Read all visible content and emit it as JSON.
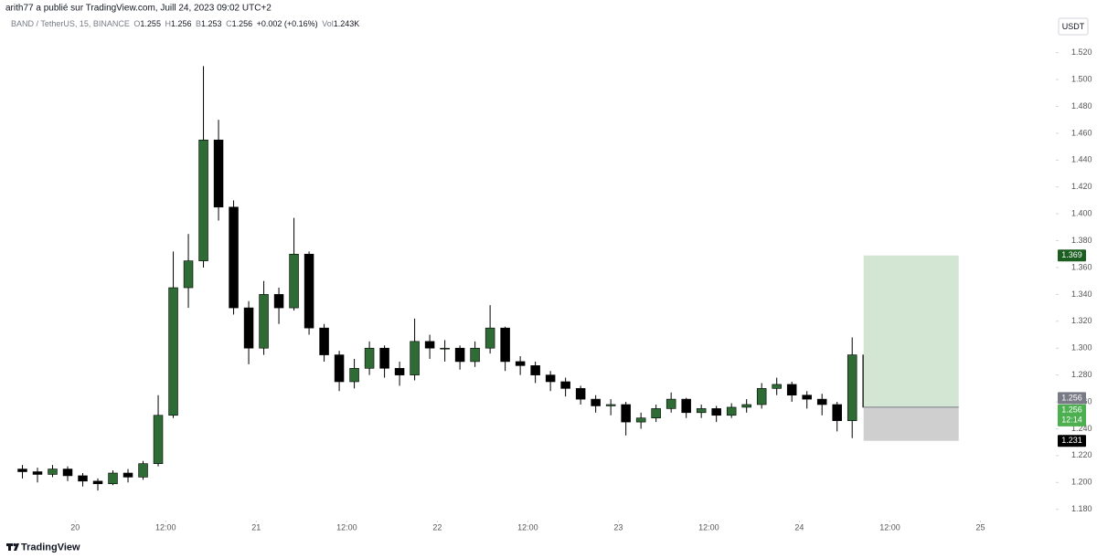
{
  "chart_data": {
    "type": "candlestick",
    "header": "arith77 a publié sur TradingView.com, Juill 24, 2023 09:02 UTC+2",
    "legend": {
      "symbol": "BAND / TetherUS, 15, BINANCE",
      "items": [
        {
          "label": "O",
          "value": "1.255"
        },
        {
          "label": "H",
          "value": "1.256"
        },
        {
          "label": "B",
          "value": "1.253"
        },
        {
          "label": "C",
          "value": "1.256"
        }
      ],
      "change": "+0.002 (+0.16%)",
      "volume_label": "Vol",
      "volume": "1.243K"
    },
    "currency": "USDT",
    "footer": "TradingView",
    "x": [
      "2023-07-19 16:00",
      "2023-07-19 18:00",
      "2023-07-19 20:00",
      "2023-07-19 22:00",
      "2023-07-20 00:00",
      "2023-07-20 02:00",
      "2023-07-20 04:00",
      "2023-07-20 06:00",
      "2023-07-20 08:00",
      "2023-07-20 10:00",
      "2023-07-20 12:00",
      "2023-07-20 14:00",
      "2023-07-20 16:00",
      "2023-07-20 18:00",
      "2023-07-20 20:00",
      "2023-07-20 22:00",
      "2023-07-21 00:00",
      "2023-07-21 02:00",
      "2023-07-21 04:00",
      "2023-07-21 06:00",
      "2023-07-21 08:00",
      "2023-07-21 10:00",
      "2023-07-21 12:00",
      "2023-07-21 14:00",
      "2023-07-21 16:00",
      "2023-07-21 18:00",
      "2023-07-21 20:00",
      "2023-07-21 22:00",
      "2023-07-22 00:00",
      "2023-07-22 02:00",
      "2023-07-22 04:00",
      "2023-07-22 06:00",
      "2023-07-22 08:00",
      "2023-07-22 10:00",
      "2023-07-22 12:00",
      "2023-07-22 14:00",
      "2023-07-22 16:00",
      "2023-07-22 18:00",
      "2023-07-22 20:00",
      "2023-07-22 22:00",
      "2023-07-23 00:00",
      "2023-07-23 02:00",
      "2023-07-23 04:00",
      "2023-07-23 06:00",
      "2023-07-23 08:00",
      "2023-07-23 10:00",
      "2023-07-23 12:00",
      "2023-07-23 14:00",
      "2023-07-23 16:00",
      "2023-07-23 18:00",
      "2023-07-23 20:00",
      "2023-07-23 22:00",
      "2023-07-24 00:00",
      "2023-07-24 02:00",
      "2023-07-24 04:00",
      "2023-07-24 06:00",
      "2023-07-24 08:00"
    ],
    "open": [
      1.21,
      1.208,
      1.206,
      1.21,
      1.205,
      1.201,
      1.199,
      1.207,
      1.204,
      1.214,
      1.25,
      1.345,
      1.365,
      1.455,
      1.405,
      1.33,
      1.3,
      1.34,
      1.33,
      1.37,
      1.315,
      1.295,
      1.275,
      1.285,
      1.3,
      1.285,
      1.28,
      1.305,
      1.3,
      1.3,
      1.29,
      1.3,
      1.315,
      1.29,
      1.287,
      1.28,
      1.275,
      1.27,
      1.262,
      1.257,
      1.258,
      1.245,
      1.248,
      1.255,
      1.262,
      1.252,
      1.255,
      1.25,
      1.256,
      1.258,
      1.27,
      1.273,
      1.265,
      1.262,
      1.258,
      1.246,
      1.295
    ],
    "high": [
      1.213,
      1.211,
      1.213,
      1.212,
      1.207,
      1.203,
      1.209,
      1.21,
      1.216,
      1.265,
      1.372,
      1.385,
      1.51,
      1.47,
      1.41,
      1.335,
      1.35,
      1.345,
      1.397,
      1.372,
      1.318,
      1.298,
      1.292,
      1.305,
      1.302,
      1.29,
      1.322,
      1.31,
      1.306,
      1.302,
      1.305,
      1.332,
      1.316,
      1.294,
      1.29,
      1.283,
      1.278,
      1.272,
      1.265,
      1.262,
      1.26,
      1.252,
      1.258,
      1.267,
      1.263,
      1.258,
      1.257,
      1.259,
      1.262,
      1.274,
      1.278,
      1.275,
      1.268,
      1.266,
      1.26,
      1.308,
      1.298
    ],
    "low": [
      1.203,
      1.2,
      1.204,
      1.201,
      1.197,
      1.194,
      1.198,
      1.2,
      1.202,
      1.212,
      1.248,
      1.33,
      1.36,
      1.395,
      1.325,
      1.288,
      1.295,
      1.318,
      1.328,
      1.31,
      1.29,
      1.268,
      1.27,
      1.28,
      1.278,
      1.272,
      1.276,
      1.292,
      1.29,
      1.284,
      1.286,
      1.296,
      1.283,
      1.28,
      1.274,
      1.268,
      1.264,
      1.258,
      1.252,
      1.25,
      1.235,
      1.24,
      1.245,
      1.252,
      1.248,
      1.248,
      1.245,
      1.248,
      1.252,
      1.255,
      1.265,
      1.26,
      1.255,
      1.25,
      1.238,
      1.233,
      1.25
    ],
    "close": [
      1.208,
      1.206,
      1.21,
      1.205,
      1.201,
      1.199,
      1.207,
      1.204,
      1.214,
      1.25,
      1.345,
      1.365,
      1.455,
      1.405,
      1.33,
      1.3,
      1.34,
      1.33,
      1.37,
      1.315,
      1.295,
      1.275,
      1.285,
      1.3,
      1.285,
      1.28,
      1.305,
      1.3,
      1.3,
      1.29,
      1.3,
      1.315,
      1.29,
      1.287,
      1.28,
      1.275,
      1.27,
      1.262,
      1.257,
      1.258,
      1.245,
      1.248,
      1.255,
      1.262,
      1.252,
      1.255,
      1.25,
      1.256,
      1.258,
      1.27,
      1.273,
      1.265,
      1.262,
      1.258,
      1.246,
      1.295,
      1.256
    ],
    "up_color": "#2f6b34",
    "down_color": "#000000",
    "wick_color": "#000000",
    "xlim": [
      "2023-07-19 15:00",
      "2023-07-25 10:00"
    ],
    "xticks": [
      {
        "value": "2023-07-20 00:00",
        "label": "20"
      },
      {
        "value": "2023-07-20 12:00",
        "label": "12:00"
      },
      {
        "value": "2023-07-21 00:00",
        "label": "21"
      },
      {
        "value": "2023-07-21 12:00",
        "label": "12:00"
      },
      {
        "value": "2023-07-22 00:00",
        "label": "22"
      },
      {
        "value": "2023-07-22 12:00",
        "label": "12:00"
      },
      {
        "value": "2023-07-23 00:00",
        "label": "23"
      },
      {
        "value": "2023-07-23 12:00",
        "label": "12:00"
      },
      {
        "value": "2023-07-24 00:00",
        "label": "24"
      },
      {
        "value": "2023-07-24 12:00",
        "label": "12:00"
      },
      {
        "value": "2023-07-25 00:00",
        "label": "25"
      }
    ],
    "ylim": [
      1.173,
      1.532
    ],
    "yticks": [
      {
        "value": 1.18,
        "label": "1.180"
      },
      {
        "value": 1.2,
        "label": "1.200"
      },
      {
        "value": 1.22,
        "label": "1.220"
      },
      {
        "value": 1.24,
        "label": "1.240"
      },
      {
        "value": 1.26,
        "label": "1.260"
      },
      {
        "value": 1.28,
        "label": "1.280"
      },
      {
        "value": 1.3,
        "label": "1.300"
      },
      {
        "value": 1.32,
        "label": "1.320"
      },
      {
        "value": 1.34,
        "label": "1.340"
      },
      {
        "value": 1.36,
        "label": "1.360"
      },
      {
        "value": 1.38,
        "label": "1.380"
      },
      {
        "value": 1.4,
        "label": "1.400"
      },
      {
        "value": 1.42,
        "label": "1.420"
      },
      {
        "value": 1.44,
        "label": "1.440"
      },
      {
        "value": 1.46,
        "label": "1.460"
      },
      {
        "value": 1.48,
        "label": "1.480"
      },
      {
        "value": 1.5,
        "label": "1.500"
      },
      {
        "value": 1.52,
        "label": "1.520"
      }
    ],
    "grid": false,
    "position": {
      "target": 1.369,
      "entry": 1.256,
      "stop": 1.231,
      "countdown": "12:14",
      "profit_color": "#d3e5d3",
      "loss_color": "#cfcfcf"
    }
  }
}
